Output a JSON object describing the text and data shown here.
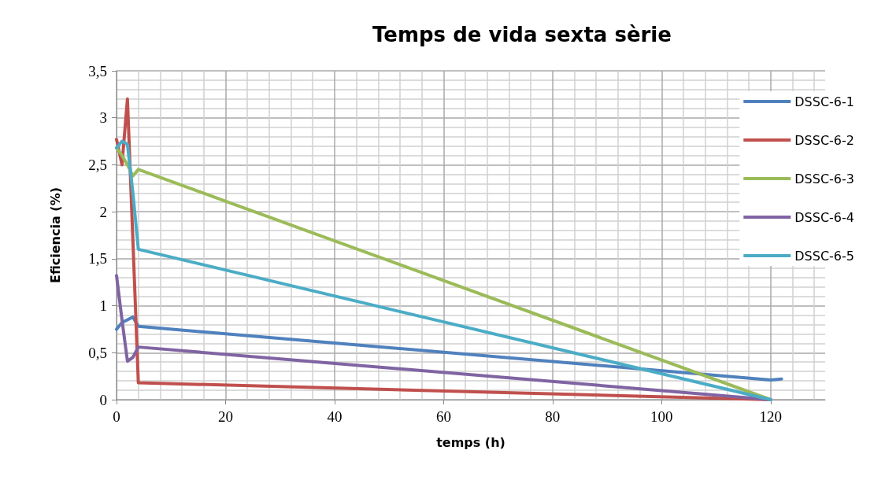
{
  "chart_data": {
    "type": "line",
    "title": "Temps de vida sexta sèrie",
    "xlabel": "temps (h)",
    "ylabel": "Eficiencia (%)",
    "xlim": [
      0,
      130
    ],
    "xticks": [
      0,
      20,
      40,
      60,
      80,
      100,
      120
    ],
    "ylim": [
      0,
      3.5
    ],
    "yticks": [
      {
        "value": 0,
        "label": "0"
      },
      {
        "value": 0.5,
        "label": "0,5"
      },
      {
        "value": 1,
        "label": "1"
      },
      {
        "value": 1.5,
        "label": "1,5"
      },
      {
        "value": 2,
        "label": "2"
      },
      {
        "value": 2.5,
        "label": "2,5"
      },
      {
        "value": 3,
        "label": "3"
      },
      {
        "value": 3.5,
        "label": "3,5"
      }
    ],
    "grid": true,
    "legend": "right",
    "marker": "none",
    "line_style": "solid",
    "series": [
      {
        "name": "DSSC-6-1",
        "color": "#4f81bd",
        "x": [
          0,
          1,
          2,
          3,
          4,
          120,
          122
        ],
        "values": [
          0.75,
          0.82,
          0.85,
          0.88,
          0.78,
          0.21,
          0.22
        ]
      },
      {
        "name": "DSSC-6-2",
        "color": "#c0504d",
        "x": [
          0,
          1,
          2,
          3,
          4,
          120
        ],
        "values": [
          2.77,
          2.5,
          3.2,
          1.7,
          0.18,
          0
        ]
      },
      {
        "name": "DSSC-6-3",
        "color": "#9bbb59",
        "x": [
          0,
          1,
          2,
          3,
          4,
          120
        ],
        "values": [
          2.68,
          2.6,
          2.5,
          2.38,
          2.45,
          0
        ]
      },
      {
        "name": "DSSC-6-4",
        "color": "#8064a2",
        "x": [
          0,
          1,
          2,
          3,
          4,
          120
        ],
        "values": [
          1.32,
          0.85,
          0.41,
          0.45,
          0.56,
          0
        ]
      },
      {
        "name": "DSSC-6-5",
        "color": "#4bacc6",
        "x": [
          0,
          1,
          2,
          3,
          4,
          120
        ],
        "values": [
          2.68,
          2.75,
          2.72,
          2.2,
          1.6,
          0
        ]
      }
    ]
  }
}
